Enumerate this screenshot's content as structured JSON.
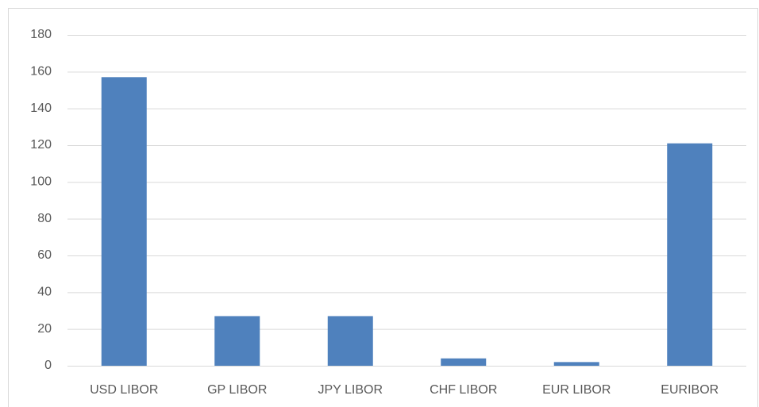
{
  "chart_data": {
    "type": "bar",
    "categories": [
      "USD LIBOR",
      "GP LIBOR",
      "JPY LIBOR",
      "CHF LIBOR",
      "EUR LIBOR",
      "EURIBOR"
    ],
    "values": [
      157,
      27,
      27,
      4,
      2,
      121
    ],
    "color": "#4f81bd",
    "ylim": [
      0,
      180
    ],
    "yticks": [
      0,
      20,
      40,
      60,
      80,
      100,
      120,
      140,
      160,
      180
    ],
    "grid": true
  }
}
